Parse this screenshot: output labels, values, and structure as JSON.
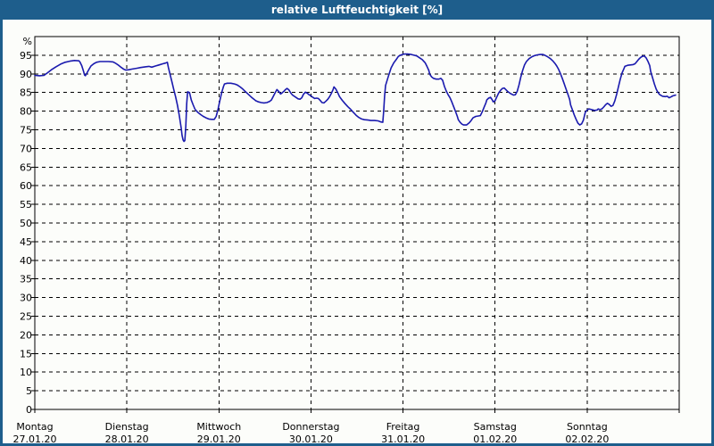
{
  "window": {
    "title": "relative Luftfeuchtigkeit [%]",
    "colors": {
      "title_bar": "#1e5e8c",
      "frame": "#1e5e8c",
      "content_bg": "#fcfdfa",
      "grid": "#000000",
      "text": "#000000"
    }
  },
  "chart_data": {
    "type": "line",
    "title": "relative Luftfeuchtigkeit [%]",
    "ylabel": "%",
    "unit_label": "%",
    "ylim": [
      0,
      100
    ],
    "ytick_step": 5,
    "ytick_values": [
      0,
      5,
      10,
      15,
      20,
      25,
      30,
      35,
      40,
      45,
      50,
      55,
      60,
      65,
      70,
      75,
      80,
      85,
      90,
      95
    ],
    "grid": "dashed",
    "legend_position": "none",
    "x_days": [
      {
        "name": "Montag",
        "date": "27.01.20"
      },
      {
        "name": "Dienstag",
        "date": "28.01.20"
      },
      {
        "name": "Mittwoch",
        "date": "29.01.20"
      },
      {
        "name": "Donnerstag",
        "date": "30.01.20"
      },
      {
        "name": "Freitag",
        "date": "31.01.20"
      },
      {
        "name": "Samstag",
        "date": "01.02.20"
      },
      {
        "name": "Sonntag",
        "date": "02.02.20"
      }
    ],
    "series": [
      {
        "name": "relative Luftfeuchtigkeit",
        "color": "#1a1aae",
        "x_unit": "days_from_start",
        "y_unit": "percent",
        "points": [
          [
            0.0,
            89.6
          ],
          [
            0.05,
            89.5
          ],
          [
            0.1,
            89.6
          ],
          [
            0.14,
            90.3
          ],
          [
            0.18,
            91.1
          ],
          [
            0.23,
            91.9
          ],
          [
            0.28,
            92.6
          ],
          [
            0.33,
            93.1
          ],
          [
            0.38,
            93.4
          ],
          [
            0.43,
            93.6
          ],
          [
            0.48,
            93.5
          ],
          [
            0.49,
            93.2
          ],
          [
            0.51,
            92.2
          ],
          [
            0.53,
            90.6
          ],
          [
            0.54,
            89.7
          ],
          [
            0.55,
            89.5
          ],
          [
            0.57,
            90.4
          ],
          [
            0.59,
            91.3
          ],
          [
            0.61,
            92.1
          ],
          [
            0.64,
            92.7
          ],
          [
            0.67,
            93.1
          ],
          [
            0.71,
            93.3
          ],
          [
            0.76,
            93.3
          ],
          [
            0.8,
            93.3
          ],
          [
            0.85,
            93.2
          ],
          [
            0.88,
            92.8
          ],
          [
            0.91,
            92.3
          ],
          [
            0.94,
            91.7
          ],
          [
            0.97,
            91.2
          ],
          [
            0.99,
            91.0
          ],
          [
            1.02,
            91.1
          ],
          [
            1.06,
            91.3
          ],
          [
            1.11,
            91.5
          ],
          [
            1.15,
            91.7
          ],
          [
            1.2,
            91.9
          ],
          [
            1.24,
            92.0
          ],
          [
            1.27,
            91.8
          ],
          [
            1.31,
            92.1
          ],
          [
            1.35,
            92.4
          ],
          [
            1.39,
            92.7
          ],
          [
            1.42,
            92.9
          ],
          [
            1.44,
            93.1
          ],
          [
            1.45,
            91.8
          ],
          [
            1.47,
            89.8
          ],
          [
            1.49,
            87.8
          ],
          [
            1.51,
            85.8
          ],
          [
            1.53,
            83.8
          ],
          [
            1.55,
            81.5
          ],
          [
            1.57,
            78.8
          ],
          [
            1.59,
            75.5
          ],
          [
            1.6,
            73.5
          ],
          [
            1.61,
            72.3
          ],
          [
            1.62,
            71.9
          ],
          [
            1.63,
            72.1
          ],
          [
            1.64,
            76.0
          ],
          [
            1.65,
            82.0
          ],
          [
            1.66,
            85.2
          ],
          [
            1.68,
            85.0
          ],
          [
            1.7,
            83.0
          ],
          [
            1.72,
            81.7
          ],
          [
            1.74,
            80.5
          ],
          [
            1.77,
            79.7
          ],
          [
            1.8,
            79.1
          ],
          [
            1.83,
            78.6
          ],
          [
            1.86,
            78.2
          ],
          [
            1.89,
            77.9
          ],
          [
            1.92,
            77.8
          ],
          [
            1.95,
            77.8
          ],
          [
            1.97,
            78.6
          ],
          [
            1.99,
            80.5
          ],
          [
            2.01,
            82.8
          ],
          [
            2.03,
            85.0
          ],
          [
            2.05,
            86.6
          ],
          [
            2.06,
            87.3
          ],
          [
            2.09,
            87.5
          ],
          [
            2.13,
            87.5
          ],
          [
            2.17,
            87.3
          ],
          [
            2.2,
            87.0
          ],
          [
            2.23,
            86.5
          ],
          [
            2.26,
            85.9
          ],
          [
            2.29,
            85.2
          ],
          [
            2.32,
            84.5
          ],
          [
            2.35,
            83.8
          ],
          [
            2.38,
            83.2
          ],
          [
            2.4,
            82.8
          ],
          [
            2.43,
            82.5
          ],
          [
            2.46,
            82.3
          ],
          [
            2.49,
            82.2
          ],
          [
            2.52,
            82.3
          ],
          [
            2.55,
            82.6
          ],
          [
            2.57,
            83.0
          ],
          [
            2.59,
            83.9
          ],
          [
            2.61,
            84.9
          ],
          [
            2.63,
            85.8
          ],
          [
            2.65,
            85.3
          ],
          [
            2.67,
            84.6
          ],
          [
            2.69,
            85.0
          ],
          [
            2.71,
            85.4
          ],
          [
            2.72,
            85.7
          ],
          [
            2.74,
            86.1
          ],
          [
            2.76,
            85.7
          ],
          [
            2.78,
            84.9
          ],
          [
            2.8,
            84.3
          ],
          [
            2.83,
            83.8
          ],
          [
            2.86,
            83.3
          ],
          [
            2.88,
            83.2
          ],
          [
            2.9,
            83.6
          ],
          [
            2.92,
            84.6
          ],
          [
            2.94,
            85.1
          ],
          [
            2.96,
            84.8
          ],
          [
            2.98,
            84.4
          ],
          [
            3.0,
            84.1
          ],
          [
            3.02,
            83.7
          ],
          [
            3.04,
            83.4
          ],
          [
            3.06,
            83.5
          ],
          [
            3.08,
            83.4
          ],
          [
            3.1,
            82.9
          ],
          [
            3.12,
            82.3
          ],
          [
            3.14,
            82.2
          ],
          [
            3.16,
            82.6
          ],
          [
            3.18,
            83.1
          ],
          [
            3.2,
            83.8
          ],
          [
            3.22,
            84.7
          ],
          [
            3.24,
            85.8
          ],
          [
            3.25,
            86.5
          ],
          [
            3.27,
            85.9
          ],
          [
            3.29,
            85.0
          ],
          [
            3.31,
            83.9
          ],
          [
            3.34,
            82.9
          ],
          [
            3.37,
            82.0
          ],
          [
            3.4,
            81.2
          ],
          [
            3.43,
            80.5
          ],
          [
            3.46,
            79.7
          ],
          [
            3.49,
            78.9
          ],
          [
            3.52,
            78.3
          ],
          [
            3.55,
            77.9
          ],
          [
            3.58,
            77.7
          ],
          [
            3.62,
            77.6
          ],
          [
            3.65,
            77.5
          ],
          [
            3.69,
            77.5
          ],
          [
            3.73,
            77.4
          ],
          [
            3.76,
            77.1
          ],
          [
            3.78,
            77.0
          ],
          [
            3.79,
            80.0
          ],
          [
            3.8,
            84.0
          ],
          [
            3.81,
            86.9
          ],
          [
            3.84,
            89.3
          ],
          [
            3.87,
            91.6
          ],
          [
            3.9,
            93.0
          ],
          [
            3.93,
            94.0
          ],
          [
            3.95,
            94.7
          ],
          [
            3.98,
            95.1
          ],
          [
            4.01,
            95.3
          ],
          [
            4.05,
            95.3
          ],
          [
            4.09,
            95.2
          ],
          [
            4.12,
            95.0
          ],
          [
            4.15,
            94.8
          ],
          [
            4.18,
            94.3
          ],
          [
            4.21,
            93.8
          ],
          [
            4.24,
            93.0
          ],
          [
            4.26,
            92.0
          ],
          [
            4.28,
            90.9
          ],
          [
            4.29,
            89.9
          ],
          [
            4.31,
            89.2
          ],
          [
            4.33,
            88.8
          ],
          [
            4.36,
            88.6
          ],
          [
            4.39,
            88.6
          ],
          [
            4.41,
            88.8
          ],
          [
            4.43,
            88.3
          ],
          [
            4.45,
            86.6
          ],
          [
            4.47,
            85.4
          ],
          [
            4.49,
            84.4
          ],
          [
            4.51,
            83.6
          ],
          [
            4.53,
            82.5
          ],
          [
            4.55,
            81.2
          ],
          [
            4.57,
            79.9
          ],
          [
            4.59,
            78.6
          ],
          [
            4.6,
            77.7
          ],
          [
            4.62,
            77.0
          ],
          [
            4.64,
            76.5
          ],
          [
            4.66,
            76.3
          ],
          [
            4.69,
            76.3
          ],
          [
            4.72,
            76.9
          ],
          [
            4.74,
            77.5
          ],
          [
            4.76,
            78.2
          ],
          [
            4.79,
            78.6
          ],
          [
            4.82,
            78.7
          ],
          [
            4.84,
            78.8
          ],
          [
            4.86,
            79.8
          ],
          [
            4.88,
            81.0
          ],
          [
            4.9,
            82.2
          ],
          [
            4.91,
            83.0
          ],
          [
            4.93,
            83.5
          ],
          [
            4.95,
            83.7
          ],
          [
            4.97,
            83.0
          ],
          [
            4.98,
            82.5
          ],
          [
            5.0,
            82.8
          ],
          [
            5.02,
            83.9
          ],
          [
            5.04,
            84.9
          ],
          [
            5.06,
            85.6
          ],
          [
            5.08,
            86.1
          ],
          [
            5.1,
            86.2
          ],
          [
            5.12,
            85.7
          ],
          [
            5.14,
            85.2
          ],
          [
            5.17,
            84.7
          ],
          [
            5.2,
            84.3
          ],
          [
            5.22,
            84.4
          ],
          [
            5.24,
            85.3
          ],
          [
            5.26,
            87.0
          ],
          [
            5.28,
            89.2
          ],
          [
            5.3,
            91.0
          ],
          [
            5.32,
            92.4
          ],
          [
            5.34,
            93.3
          ],
          [
            5.37,
            94.1
          ],
          [
            5.4,
            94.6
          ],
          [
            5.43,
            94.9
          ],
          [
            5.46,
            95.1
          ],
          [
            5.49,
            95.2
          ],
          [
            5.52,
            95.2
          ],
          [
            5.54,
            95.0
          ],
          [
            5.57,
            94.6
          ],
          [
            5.6,
            94.1
          ],
          [
            5.63,
            93.4
          ],
          [
            5.65,
            92.8
          ],
          [
            5.67,
            92.1
          ],
          [
            5.69,
            91.2
          ],
          [
            5.71,
            90.1
          ],
          [
            5.73,
            88.8
          ],
          [
            5.75,
            87.4
          ],
          [
            5.77,
            86.0
          ],
          [
            5.79,
            84.6
          ],
          [
            5.81,
            83.1
          ],
          [
            5.82,
            81.7
          ],
          [
            5.84,
            80.3
          ],
          [
            5.86,
            79.0
          ],
          [
            5.88,
            77.8
          ],
          [
            5.9,
            76.8
          ],
          [
            5.92,
            76.3
          ],
          [
            5.94,
            76.6
          ],
          [
            5.96,
            77.6
          ],
          [
            5.97,
            78.7
          ],
          [
            5.98,
            79.7
          ],
          [
            6.0,
            80.3
          ],
          [
            6.02,
            80.6
          ],
          [
            6.05,
            80.4
          ],
          [
            6.08,
            80.2
          ],
          [
            6.11,
            80.3
          ],
          [
            6.12,
            80.6
          ],
          [
            6.14,
            80.4
          ],
          [
            6.16,
            80.6
          ],
          [
            6.18,
            81.1
          ],
          [
            6.2,
            81.7
          ],
          [
            6.22,
            82.1
          ],
          [
            6.24,
            81.8
          ],
          [
            6.26,
            81.3
          ],
          [
            6.28,
            81.5
          ],
          [
            6.3,
            82.7
          ],
          [
            6.32,
            84.5
          ],
          [
            6.34,
            86.5
          ],
          [
            6.36,
            88.6
          ],
          [
            6.38,
            90.3
          ],
          [
            6.4,
            91.4
          ],
          [
            6.41,
            92.0
          ],
          [
            6.44,
            92.3
          ],
          [
            6.47,
            92.4
          ],
          [
            6.5,
            92.5
          ],
          [
            6.52,
            92.7
          ],
          [
            6.54,
            93.3
          ],
          [
            6.56,
            93.9
          ],
          [
            6.58,
            94.4
          ],
          [
            6.6,
            94.7
          ],
          [
            6.62,
            94.8
          ],
          [
            6.64,
            94.3
          ],
          [
            6.66,
            93.4
          ],
          [
            6.68,
            92.2
          ],
          [
            6.69,
            90.7
          ],
          [
            6.71,
            89.0
          ],
          [
            6.73,
            87.3
          ],
          [
            6.75,
            85.9
          ],
          [
            6.77,
            85.0
          ],
          [
            6.79,
            84.4
          ],
          [
            6.82,
            84.0
          ],
          [
            6.85,
            83.9
          ],
          [
            6.87,
            84.0
          ],
          [
            6.89,
            83.6
          ],
          [
            6.91,
            83.8
          ],
          [
            6.93,
            84.1
          ],
          [
            6.96,
            84.3
          ]
        ]
      }
    ]
  }
}
